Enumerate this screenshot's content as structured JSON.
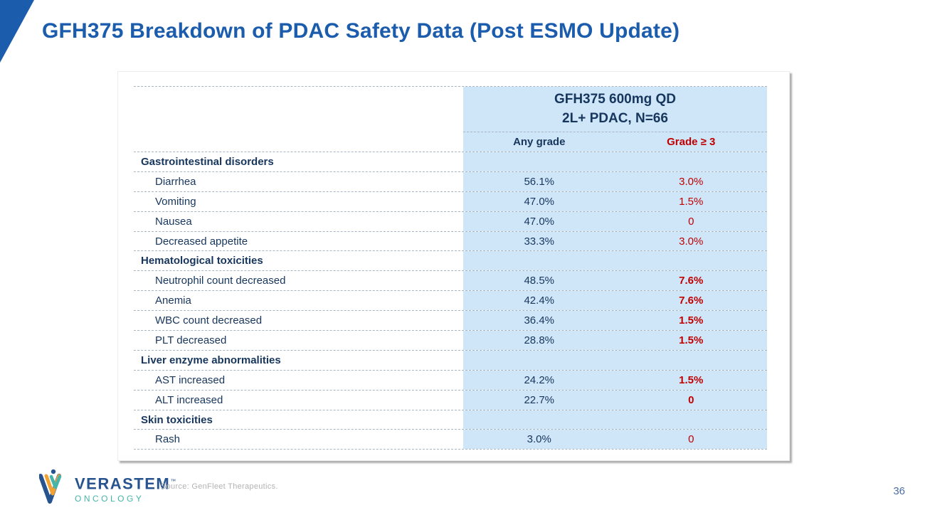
{
  "slide": {
    "title": "GFH375 Breakdown of PDAC Safety Data (Post ESMO Update)",
    "page_number": "36",
    "source_note": "Source: GenFleet Therapeutics.",
    "logo": {
      "brand": "VERASTEM",
      "trademark": "™",
      "subbrand": "ONCOLOGY"
    }
  },
  "colors": {
    "accent_blue": "#1b5cad",
    "navy_text": "#17365d",
    "alert_red": "#c00000",
    "table_fill": "#cfe6f8",
    "dash_border": "#a8b6c4",
    "logo_blue": "#27538f",
    "logo_teal": "#45b5a9",
    "logo_orange": "#f2a233"
  },
  "table": {
    "header": {
      "line1": "GFH375 600mg QD",
      "line2": "2L+ PDAC, N=66"
    },
    "columns": [
      "Any grade",
      "Grade ≥ 3"
    ],
    "rows": [
      {
        "type": "category",
        "label": "Gastrointestinal disorders",
        "any_grade": "",
        "grade3": "",
        "grade3_bold": false
      },
      {
        "type": "item",
        "label": "Diarrhea",
        "any_grade": "56.1%",
        "grade3": "3.0%",
        "grade3_bold": false
      },
      {
        "type": "item",
        "label": "Vomiting",
        "any_grade": "47.0%",
        "grade3": "1.5%",
        "grade3_bold": false
      },
      {
        "type": "item",
        "label": "Nausea",
        "any_grade": "47.0%",
        "grade3": "0",
        "grade3_bold": false
      },
      {
        "type": "item",
        "label": "Decreased appetite",
        "any_grade": "33.3%",
        "grade3": "3.0%",
        "grade3_bold": false
      },
      {
        "type": "category",
        "label": "Hematological toxicities",
        "any_grade": "",
        "grade3": "",
        "grade3_bold": false
      },
      {
        "type": "item",
        "label": "Neutrophil count decreased",
        "any_grade": "48.5%",
        "grade3": "7.6%",
        "grade3_bold": true
      },
      {
        "type": "item",
        "label": "Anemia",
        "any_grade": "42.4%",
        "grade3": "7.6%",
        "grade3_bold": true
      },
      {
        "type": "item",
        "label": "WBC count decreased",
        "any_grade": "36.4%",
        "grade3": "1.5%",
        "grade3_bold": true
      },
      {
        "type": "item",
        "label": "PLT decreased",
        "any_grade": "28.8%",
        "grade3": "1.5%",
        "grade3_bold": true
      },
      {
        "type": "category",
        "label": "Liver enzyme abnormalities",
        "any_grade": "",
        "grade3": "",
        "grade3_bold": false
      },
      {
        "type": "item",
        "label": "AST increased",
        "any_grade": "24.2%",
        "grade3": "1.5%",
        "grade3_bold": true
      },
      {
        "type": "item",
        "label": "ALT increased",
        "any_grade": "22.7%",
        "grade3": "0",
        "grade3_bold": true
      },
      {
        "type": "category",
        "label": "Skin toxicities",
        "any_grade": "",
        "grade3": "",
        "grade3_bold": false
      },
      {
        "type": "item",
        "label": "Rash",
        "any_grade": "3.0%",
        "grade3": "0",
        "grade3_bold": false
      }
    ]
  }
}
